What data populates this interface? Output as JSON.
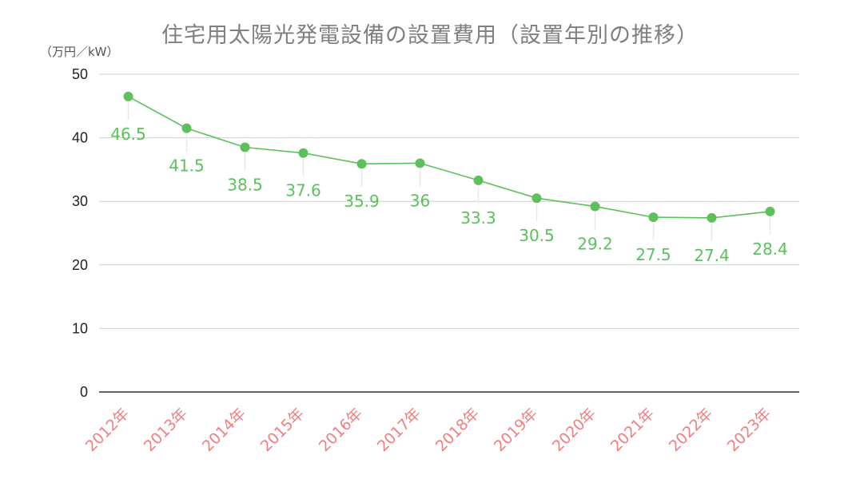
{
  "chart_data": {
    "type": "line",
    "title": "住宅用太陽光発電設備の設置費用（設置年別の推移）",
    "ylabel": "（万円／kW）",
    "xlabel": "",
    "categories": [
      "2012年",
      "2013年",
      "2014年",
      "2015年",
      "2016年",
      "2017年",
      "2018年",
      "2019年",
      "2020年",
      "2021年",
      "2022年",
      "2023年"
    ],
    "series": [
      {
        "values": [
          46.5,
          41.5,
          38.5,
          37.6,
          35.9,
          36,
          33.3,
          30.5,
          29.2,
          27.5,
          27.4,
          28.4
        ]
      }
    ],
    "data_labels": [
      "46.5",
      "41.5",
      "38.5",
      "37.6",
      "35.9",
      "36",
      "33.3",
      "30.5",
      "29.2",
      "27.5",
      "27.4",
      "28.4"
    ],
    "ylim": [
      0,
      50
    ],
    "yticks": [
      "0",
      "10",
      "20",
      "30",
      "40",
      "50"
    ],
    "grid": true,
    "legend": "none",
    "colors": {
      "line": "#5cc05c",
      "data_label": "#5cc05c",
      "x_tick_label": "#f08080",
      "grid": "#d0d0d0",
      "axis": "#333333",
      "title": "#7f7f7f"
    }
  }
}
